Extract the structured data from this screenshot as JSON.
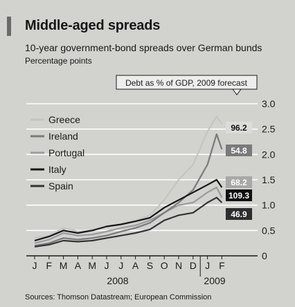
{
  "title": "Middle-aged spreads",
  "subtitle": "10-year government-bond spreads over German bunds",
  "units": "Percentage points",
  "source": "Sources: Thomson Datastream; European Commission",
  "chart_data": {
    "type": "line",
    "ylim": [
      0,
      3.0
    ],
    "yticks": [
      "0",
      "0.5",
      "1.0",
      "1.5",
      "2.0",
      "2.5",
      "3.0"
    ],
    "months": [
      "J",
      "F",
      "M",
      "A",
      "M",
      "J",
      "J",
      "A",
      "S",
      "O",
      "N",
      "D",
      "J",
      "F"
    ],
    "years": [
      "2008",
      "2009"
    ],
    "grid": true,
    "legend_position": "top-left",
    "debt_box_title": "Debt as % of GDP, 2009 forecast",
    "x": [
      "2008-01",
      "2008-02",
      "2008-03",
      "2008-04",
      "2008-05",
      "2008-06",
      "2008-07",
      "2008-08",
      "2008-09",
      "2008-10",
      "2008-11",
      "2008-12",
      "2009-01",
      "2009-01-20",
      "2009-02"
    ],
    "series": [
      {
        "name": "Greece",
        "color": "#c4c4c2",
        "debt_label": "96.2",
        "debt_bg": "#dcdcda",
        "debt_fg": "#111111",
        "values": [
          0.35,
          0.4,
          0.55,
          0.48,
          0.5,
          0.58,
          0.62,
          0.7,
          0.8,
          1.1,
          1.5,
          1.8,
          2.45,
          2.75,
          2.6
        ]
      },
      {
        "name": "Ireland",
        "color": "#7a7a7a",
        "debt_label": "54.8",
        "debt_bg": "#7a7a7a",
        "debt_fg": "#ffffff",
        "values": [
          0.2,
          0.25,
          0.35,
          0.32,
          0.35,
          0.4,
          0.48,
          0.55,
          0.65,
          0.85,
          1.05,
          1.3,
          1.8,
          2.4,
          2.1
        ]
      },
      {
        "name": "Portugal",
        "color": "#9b9b9b",
        "debt_label": "68.2",
        "debt_bg": "#a8a8a6",
        "debt_fg": "#ffffff",
        "values": [
          0.25,
          0.32,
          0.45,
          0.4,
          0.42,
          0.48,
          0.55,
          0.6,
          0.7,
          0.85,
          1.0,
          1.05,
          1.25,
          1.35,
          1.15
        ]
      },
      {
        "name": "Italy",
        "color": "#161616",
        "debt_label": "109.3",
        "debt_bg": "#111111",
        "debt_fg": "#ffffff",
        "values": [
          0.3,
          0.38,
          0.5,
          0.45,
          0.5,
          0.58,
          0.62,
          0.68,
          0.75,
          0.95,
          1.1,
          1.25,
          1.4,
          1.5,
          1.35
        ]
      },
      {
        "name": "Spain",
        "color": "#333333",
        "debt_label": "46.9",
        "debt_bg": "#2d2d2d",
        "debt_fg": "#ffffff",
        "values": [
          0.18,
          0.22,
          0.3,
          0.28,
          0.3,
          0.35,
          0.4,
          0.45,
          0.52,
          0.7,
          0.8,
          0.85,
          1.05,
          1.15,
          1.05
        ]
      }
    ]
  }
}
